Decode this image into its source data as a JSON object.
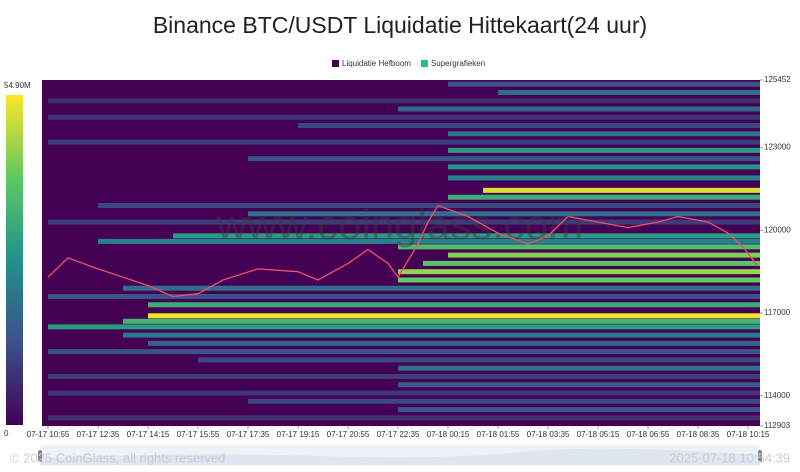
{
  "chart_data": {
    "type": "heatmap",
    "title": "Binance BTC/USDT Liquidatie Hittekaart(24 uur)",
    "legend": [
      {
        "name": "Liquidatie Hefboom",
        "color": "#440154"
      },
      {
        "name": "Supergrafieken",
        "color": "#22c087"
      }
    ],
    "watermark": "www.coinglass.com",
    "footer_left": "© 2025 CoinGlass, all rights reserved",
    "footer_right": "2025-07-18 10:54:39",
    "colormap": "viridis",
    "zlim": [
      0,
      54.9
    ],
    "zticks": [
      0,
      {
        "value": 54.9,
        "label": "54.90M"
      }
    ],
    "xlim": [
      -12,
      1424
    ],
    "xticks": [
      {
        "value": 0,
        "label": "07-17 10:55"
      },
      {
        "value": 100,
        "label": "07-17 12:35"
      },
      {
        "value": 200,
        "label": "07-17 14:15"
      },
      {
        "value": 300,
        "label": "07-17 15:55"
      },
      {
        "value": 400,
        "label": "07-17 17:35"
      },
      {
        "value": 500,
        "label": "07-17 19:15"
      },
      {
        "value": 600,
        "label": "07-17 20:55"
      },
      {
        "value": 700,
        "label": "07-17 22:35"
      },
      {
        "value": 800,
        "label": "07-18 00:15"
      },
      {
        "value": 900,
        "label": "07-18 01:55"
      },
      {
        "value": 1000,
        "label": "07-18 03:35"
      },
      {
        "value": 1100,
        "label": "07-18 05:15"
      },
      {
        "value": 1200,
        "label": "07-18 06:55"
      },
      {
        "value": 1300,
        "label": "07-18 08:35"
      },
      {
        "value": 1400,
        "label": "07-18 10:15"
      }
    ],
    "ylim": [
      112903,
      125452
    ],
    "yticks": [
      112903,
      114000,
      117000,
      120000,
      123000,
      125452
    ],
    "bands": [
      {
        "price": 125300,
        "start": 800,
        "value": 14
      },
      {
        "price": 125000,
        "start": 900,
        "value": 20
      },
      {
        "price": 124700,
        "start": 0,
        "value": 8
      },
      {
        "price": 124400,
        "start": 700,
        "value": 18
      },
      {
        "price": 124100,
        "start": 0,
        "value": 9
      },
      {
        "price": 123800,
        "start": 500,
        "value": 12
      },
      {
        "price": 123500,
        "start": 800,
        "value": 22
      },
      {
        "price": 123200,
        "start": 0,
        "value": 10
      },
      {
        "price": 122900,
        "start": 800,
        "value": 30
      },
      {
        "price": 122600,
        "start": 400,
        "value": 14
      },
      {
        "price": 122300,
        "start": 800,
        "value": 28
      },
      {
        "price": 121900,
        "start": 800,
        "value": 24
      },
      {
        "price": 121450,
        "start": 870,
        "value": 52
      },
      {
        "price": 121200,
        "start": 800,
        "value": 34
      },
      {
        "price": 120900,
        "start": 100,
        "value": 12
      },
      {
        "price": 120600,
        "start": 400,
        "value": 20
      },
      {
        "price": 120300,
        "start": 0,
        "value": 10
      },
      {
        "price": 119800,
        "start": 250,
        "value": 30
      },
      {
        "price": 119600,
        "start": 100,
        "value": 24
      },
      {
        "price": 119400,
        "start": 700,
        "value": 38
      },
      {
        "price": 119100,
        "start": 800,
        "value": 44
      },
      {
        "price": 118800,
        "start": 750,
        "value": 40
      },
      {
        "price": 118500,
        "start": 700,
        "value": 46
      },
      {
        "price": 118200,
        "start": 700,
        "value": 42
      },
      {
        "price": 117900,
        "start": 150,
        "value": 20
      },
      {
        "price": 117600,
        "start": 0,
        "value": 14
      },
      {
        "price": 117300,
        "start": 200,
        "value": 34
      },
      {
        "price": 116900,
        "start": 200,
        "value": 54
      },
      {
        "price": 116700,
        "start": 150,
        "value": 36
      },
      {
        "price": 116500,
        "start": 0,
        "value": 30
      },
      {
        "price": 116200,
        "start": 150,
        "value": 22
      },
      {
        "price": 115900,
        "start": 200,
        "value": 18
      },
      {
        "price": 115600,
        "start": 0,
        "value": 14
      },
      {
        "price": 115300,
        "start": 300,
        "value": 12
      },
      {
        "price": 115000,
        "start": 700,
        "value": 20
      },
      {
        "price": 114700,
        "start": 0,
        "value": 10
      },
      {
        "price": 114400,
        "start": 700,
        "value": 16
      },
      {
        "price": 114100,
        "start": 0,
        "value": 9
      },
      {
        "price": 113800,
        "start": 400,
        "value": 12
      },
      {
        "price": 113500,
        "start": 700,
        "value": 14
      },
      {
        "price": 113200,
        "start": 0,
        "value": 8
      }
    ],
    "price": {
      "color": "#f0506e",
      "x": [
        0,
        40,
        100,
        200,
        250,
        300,
        350,
        420,
        500,
        540,
        600,
        640,
        680,
        700,
        740,
        760,
        780,
        840,
        900,
        960,
        1000,
        1040,
        1100,
        1160,
        1220,
        1260,
        1320,
        1360,
        1390,
        1420
      ],
      "values": [
        118300,
        119000,
        118600,
        118000,
        117600,
        117700,
        118200,
        118600,
        118500,
        118200,
        118800,
        119300,
        118800,
        118300,
        119500,
        120300,
        120900,
        120500,
        119900,
        119500,
        119800,
        120500,
        120300,
        120100,
        120300,
        120500,
        120300,
        119900,
        119400,
        118700
      ]
    }
  }
}
